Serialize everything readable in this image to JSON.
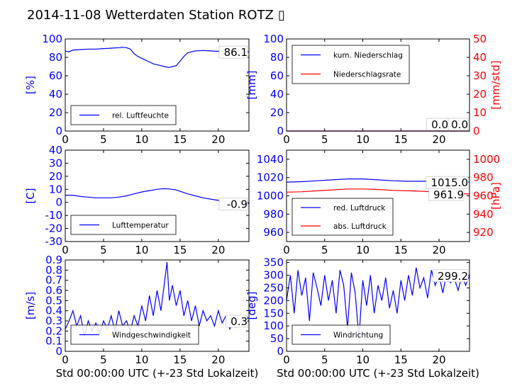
{
  "title": "2014-11-08 Wetterdaten Station ROTZ",
  "title_glyph": "▯",
  "colors": {
    "primary": "#0000ff",
    "secondary": "#ff0000",
    "frame": "#000000"
  },
  "chart_data": [
    {
      "id": "humidity",
      "type": "line",
      "title": "",
      "xlabel": "",
      "ylabel": "[%]",
      "xlim": [
        0,
        24
      ],
      "ylim": [
        0,
        100
      ],
      "xticks": [
        0,
        5,
        10,
        15,
        20
      ],
      "yticks": [
        0,
        20,
        40,
        60,
        80,
        100
      ],
      "legend_position": "lower-left",
      "grid": false,
      "last_value_label": "86.1",
      "series": [
        {
          "name": "rel. Luftfeuchte",
          "color": "#0000ff",
          "axis": "left",
          "x": [
            0,
            0.5,
            1,
            2,
            3,
            4,
            5,
            6,
            7,
            7.5,
            8,
            8.5,
            9,
            9.5,
            10,
            10.5,
            11,
            11.5,
            12,
            12.5,
            13,
            13.5,
            14,
            14.5,
            15,
            15.5,
            16,
            17,
            18,
            19,
            20,
            21,
            22,
            23,
            24
          ],
          "y": [
            87,
            86,
            88,
            88.5,
            89,
            89,
            89.5,
            90,
            90.5,
            91,
            90.5,
            89,
            84,
            81,
            79,
            77,
            75,
            73,
            72,
            71,
            70,
            69,
            70,
            71,
            76,
            81,
            85,
            87,
            87.5,
            87,
            86.5,
            86.5,
            86,
            86,
            86.1
          ]
        }
      ]
    },
    {
      "id": "precipitation",
      "type": "line",
      "title": "",
      "xlabel": "",
      "ylabel": "[mm]",
      "ylabel_right": "[mm/std]",
      "xlim": [
        0,
        24
      ],
      "ylim": [
        0,
        100
      ],
      "ylim_right": [
        0,
        50
      ],
      "xticks": [
        0,
        5,
        10,
        15,
        20
      ],
      "yticks": [
        0,
        20,
        40,
        60,
        80,
        100
      ],
      "yticks_right": [
        0,
        10,
        20,
        30,
        40,
        50
      ],
      "legend_position": "upper-left",
      "grid": false,
      "last_value_label": "0.0",
      "last_value_label_2": "0.0",
      "series": [
        {
          "name": "kum. Niederschlag",
          "color": "#0000ff",
          "axis": "left",
          "x": [
            0,
            24
          ],
          "y": [
            0,
            0
          ]
        },
        {
          "name": "Niederschlagsrate",
          "color": "#ff0000",
          "axis": "right",
          "x": [
            0,
            24
          ],
          "y": [
            0,
            0
          ]
        }
      ]
    },
    {
      "id": "temperature",
      "type": "line",
      "title": "",
      "xlabel": "",
      "ylabel": "[C]",
      "xlim": [
        0,
        24
      ],
      "ylim": [
        -30,
        40
      ],
      "xticks": [
        0,
        5,
        10,
        15,
        20
      ],
      "yticks": [
        -30,
        -20,
        -10,
        0,
        10,
        20,
        30,
        40
      ],
      "legend_position": "lower-left",
      "grid": false,
      "last_value_label": "-0.9",
      "series": [
        {
          "name": "Lufttemperatur",
          "color": "#0000ff",
          "axis": "left",
          "x": [
            0,
            1,
            2,
            3,
            4,
            5,
            6,
            7,
            8,
            9,
            10,
            11,
            12,
            12.5,
            13,
            13.5,
            14,
            14.5,
            15,
            16,
            17,
            18,
            19,
            20,
            21,
            22,
            23,
            24
          ],
          "y": [
            5.5,
            5.5,
            4.5,
            4,
            3.5,
            3.5,
            3.5,
            4,
            5,
            6.5,
            8,
            9,
            10,
            10.3,
            10.5,
            10.3,
            10,
            9.5,
            8.5,
            6.5,
            5,
            3.5,
            2.5,
            1.5,
            0.5,
            0,
            -0.5,
            -0.9
          ]
        }
      ]
    },
    {
      "id": "pressure",
      "type": "line",
      "title": "",
      "xlabel": "",
      "ylabel": "",
      "ylabel_right": "[hPa]",
      "xlim": [
        0,
        24
      ],
      "ylim": [
        950,
        1050
      ],
      "ylim_right": [
        910,
        1010
      ],
      "xticks": [
        0,
        5,
        10,
        15,
        20
      ],
      "yticks": [
        960,
        980,
        1000,
        1020,
        1040
      ],
      "yticks_right": [
        920,
        940,
        960,
        980,
        1000
      ],
      "legend_position": "lower-left",
      "grid": false,
      "last_value_label": "1015.0",
      "last_value_label_2": "961.9",
      "series": [
        {
          "name": "red. Luftdruck",
          "color": "#0000ff",
          "axis": "left",
          "x": [
            0,
            2,
            4,
            6,
            8,
            10,
            12,
            14,
            16,
            18,
            20,
            22,
            24
          ],
          "y": [
            1015,
            1015.5,
            1016.5,
            1017.5,
            1018.5,
            1018.5,
            1017.5,
            1016.5,
            1016,
            1016,
            1016,
            1015.5,
            1015
          ]
        },
        {
          "name": "abs. Luftdruck",
          "color": "#ff0000",
          "axis": "right",
          "x": [
            0,
            2,
            4,
            6,
            8,
            10,
            12,
            14,
            16,
            18,
            20,
            22,
            24
          ],
          "y": [
            964,
            964.5,
            965.5,
            966.5,
            967.5,
            967.5,
            967,
            966,
            965.5,
            965,
            964,
            963,
            961.9
          ]
        }
      ]
    },
    {
      "id": "wind_speed",
      "type": "line",
      "title": "",
      "xlabel": "Std 00:00:00 UTC (+-23 Std Lokalzeit)",
      "ylabel": "[m/s]",
      "xlim": [
        0,
        24
      ],
      "ylim": [
        0,
        0.9
      ],
      "xticks": [
        0,
        5,
        10,
        15,
        20
      ],
      "yticks": [
        0.0,
        0.1,
        0.2,
        0.3,
        0.4,
        0.5,
        0.6,
        0.7,
        0.8,
        0.9
      ],
      "legend_position": "lower-left",
      "grid": false,
      "last_value_label": "0.3",
      "series": [
        {
          "name": "Windgeschwindigkeit",
          "color": "#0000ff",
          "axis": "left",
          "x": [
            0,
            0.5,
            1,
            1.5,
            2,
            2.5,
            3,
            3.5,
            4,
            4.5,
            5,
            5.5,
            6,
            6.5,
            7,
            7.5,
            8,
            8.5,
            9,
            9.5,
            10,
            10.5,
            11,
            11.5,
            12,
            12.5,
            13,
            13.3,
            13.6,
            14,
            14.5,
            15,
            15.5,
            16,
            16.5,
            17,
            17.5,
            18,
            18.5,
            19,
            19.5,
            20,
            20.5,
            21,
            21.5,
            22,
            22.5,
            23,
            23.5,
            24
          ],
          "y": [
            0.22,
            0.3,
            0.4,
            0.25,
            0.35,
            0.15,
            0.3,
            0.2,
            0.28,
            0.18,
            0.3,
            0.22,
            0.35,
            0.2,
            0.4,
            0.25,
            0.3,
            0.2,
            0.35,
            0.25,
            0.45,
            0.3,
            0.55,
            0.35,
            0.6,
            0.4,
            0.7,
            0.88,
            0.5,
            0.65,
            0.45,
            0.6,
            0.35,
            0.5,
            0.3,
            0.45,
            0.25,
            0.4,
            0.3,
            0.35,
            0.25,
            0.4,
            0.28,
            0.35,
            0.22,
            0.3,
            0.25,
            0.32,
            0.28,
            0.3
          ]
        }
      ]
    },
    {
      "id": "wind_direction",
      "type": "line",
      "title": "",
      "xlabel": "Std 00:00:00 UTC (+-23 Std Lokalzeit)",
      "ylabel": "[deg]",
      "xlim": [
        0,
        24
      ],
      "ylim": [
        0,
        360
      ],
      "xticks": [
        0,
        5,
        10,
        15,
        20
      ],
      "yticks": [
        0,
        50,
        100,
        150,
        200,
        250,
        300,
        350
      ],
      "legend_position": "lower-left",
      "grid": false,
      "last_value_label": "299.2",
      "series": [
        {
          "name": "Windrichtung",
          "color": "#0000ff",
          "axis": "left",
          "x": [
            0,
            0.5,
            1,
            1.5,
            2,
            2.5,
            3,
            3.5,
            4,
            4.5,
            5,
            5.5,
            6,
            6.5,
            7,
            7.5,
            8,
            8.5,
            9,
            9.5,
            10,
            10.5,
            11,
            11.5,
            12,
            12.5,
            13,
            13.5,
            14,
            14.5,
            15,
            15.5,
            16,
            16.5,
            17,
            17.5,
            18,
            18.5,
            19,
            19.5,
            20,
            20.5,
            21,
            21.5,
            22,
            22.5,
            23,
            23.5,
            24
          ],
          "y": [
            200,
            300,
            150,
            320,
            220,
            290,
            120,
            310,
            250,
            180,
            300,
            200,
            280,
            150,
            320,
            260,
            90,
            310,
            230,
            50,
            280,
            180,
            300,
            150,
            260,
            200,
            290,
            170,
            240,
            150,
            280,
            200,
            300,
            220,
            330,
            250,
            290,
            210,
            320,
            260,
            300,
            230,
            310,
            270,
            290,
            240,
            300,
            260,
            299.2
          ]
        }
      ]
    }
  ]
}
